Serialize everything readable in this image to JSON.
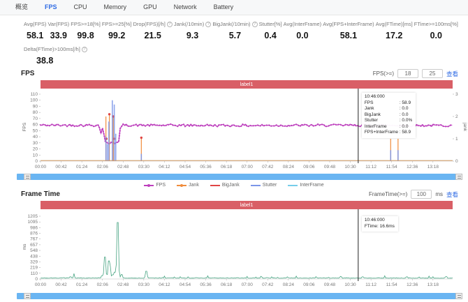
{
  "tabs": {
    "items": [
      {
        "id": "overview",
        "label": "概览",
        "active": false
      },
      {
        "id": "fps",
        "label": "FPS",
        "active": true
      },
      {
        "id": "cpu",
        "label": "CPU",
        "active": false
      },
      {
        "id": "memory",
        "label": "Memory",
        "active": false
      },
      {
        "id": "gpu",
        "label": "GPU",
        "active": false
      },
      {
        "id": "network",
        "label": "Network",
        "active": false
      },
      {
        "id": "battery",
        "label": "Battery",
        "active": false
      }
    ]
  },
  "stats": {
    "items": [
      {
        "label": "Avg(FPS)",
        "value": "58.1",
        "help": false
      },
      {
        "label": "Var(FPS)",
        "value": "33.9",
        "help": false
      },
      {
        "label": "FPS>=18[%]",
        "value": "99.8",
        "help": false
      },
      {
        "label": "FPS>=25[%]",
        "value": "99.2",
        "help": false
      },
      {
        "label": "Drop(FPS)[/h]",
        "value": "21.5",
        "help": true
      },
      {
        "label": "Jank(/10min)",
        "value": "9.3",
        "help": true
      },
      {
        "label": "BigJank(/10min)",
        "value": "5.7",
        "help": true
      },
      {
        "label": "Stutter[%]",
        "value": "0.4",
        "help": false
      },
      {
        "label": "Avg(InterFrame)",
        "value": "0.0",
        "help": false
      },
      {
        "label": "Avg(FPS+InterFrame)",
        "value": "58.1",
        "help": false
      },
      {
        "label": "Avg(FTime)[ms]",
        "value": "17.2",
        "help": false
      },
      {
        "label": "FTime>=100ms[%]",
        "value": "0.0",
        "help": false
      }
    ],
    "delta": {
      "label": "Delta(FTime)>100ms[/h]",
      "value": "38.8",
      "help": true
    }
  },
  "fps_section": {
    "title": "FPS",
    "threshold_label": "FPS(>=)",
    "input1": "18",
    "input2": "25",
    "action": "查看",
    "banner": "label1"
  },
  "ft_section": {
    "title": "Frame Time",
    "threshold_label": "FrameTime(>=)",
    "input": "100",
    "unit": "ms",
    "action": "查看",
    "banner": "label1"
  },
  "legend": {
    "items": [
      {
        "label": "FPS",
        "color": "#bd3fbd",
        "dot": true
      },
      {
        "label": "Jank",
        "color": "#f08c3c",
        "dot": true
      },
      {
        "label": "BigJank",
        "color": "#e04545",
        "dot": false
      },
      {
        "label": "Stutter",
        "color": "#7b96e8",
        "dot": false
      },
      {
        "label": "InterFrame",
        "color": "#76cdea",
        "dot": false
      }
    ]
  },
  "colors": {
    "accent_blue": "#2f6be4",
    "banner_red": "#d95f66",
    "scrollbar_blue": "#6ab5f2",
    "fps_line": "#bd3fbd",
    "jank": "#f08c3c",
    "bigjank": "#e04545",
    "stutter": "#7b96e8",
    "interframe": "#76cdea",
    "ftime_green": "#46a381",
    "cursor": "#222222"
  },
  "chart_data": [
    {
      "type": "line",
      "title": "FPS",
      "ylabel_left": "FPS",
      "ylabel_right": "jank",
      "y_left_ticks": [
        0,
        10,
        20,
        30,
        40,
        50,
        60,
        70,
        80,
        90,
        100,
        110
      ],
      "y_left_range": [
        0,
        110
      ],
      "y_right_ticks": [
        0,
        1,
        2,
        3
      ],
      "y_right_range": [
        0,
        3
      ],
      "x_ticks": [
        "00:00",
        "00:42",
        "01:24",
        "02:06",
        "02:48",
        "03:30",
        "04:12",
        "04:54",
        "05:36",
        "06:18",
        "07:00",
        "07:42",
        "08:24",
        "09:06",
        "09:48",
        "10:30",
        "11:12",
        "11:54",
        "12:36",
        "13:18"
      ],
      "x_tick_interval_s": 42,
      "x_range_s": [
        0,
        838
      ],
      "grid": false,
      "series": [
        {
          "name": "FPS",
          "color": "#bd3fbd",
          "kind": "noisy-line",
          "axis": "left",
          "noise": 2,
          "anchors": [
            [
              0,
              59
            ],
            [
              119,
              59
            ],
            [
              123,
              45
            ],
            [
              127,
              59
            ],
            [
              131,
              31
            ],
            [
              139,
              28
            ],
            [
              145,
              33
            ],
            [
              152,
              29
            ],
            [
              159,
              31
            ],
            [
              163,
              59
            ],
            [
              400,
              58.5
            ],
            [
              646,
              58.9
            ],
            [
              838,
              58.5
            ]
          ]
        },
        {
          "name": "Jank",
          "color": "#f08c3c",
          "kind": "spikes",
          "axis": "right",
          "points": [
            [
              133,
              2.0
            ],
            [
              140,
              2.1
            ],
            [
              148,
              2.0
            ],
            [
              205,
              1.05
            ],
            [
              712,
              1.0
            ],
            [
              727,
              1.0
            ]
          ]
        },
        {
          "name": "BigJank",
          "color": "#e04545",
          "kind": "dots",
          "axis": "right",
          "points": [
            [
              134,
              1.0
            ],
            [
              140,
              2.1
            ],
            [
              148,
              2.0
            ],
            [
              150,
              1.0
            ],
            [
              205,
              1.05
            ]
          ]
        },
        {
          "name": "Stutter",
          "color": "#7b96e8",
          "kind": "bars",
          "axis": "left",
          "points": [
            [
              133,
              40
            ],
            [
              136,
              28
            ],
            [
              139,
              65
            ],
            [
              146,
              100
            ],
            [
              150,
              93
            ],
            [
              153,
              45
            ],
            [
              205,
              12
            ],
            [
              712,
              18
            ],
            [
              727,
              18
            ]
          ]
        },
        {
          "name": "InterFrame",
          "color": "#76cdea",
          "kind": "baseline",
          "axis": "left",
          "value": 0
        },
        {
          "name": "Jank-baseline",
          "color": "#f08c3c",
          "kind": "baseline",
          "axis": "right",
          "value": 0
        }
      ],
      "cursor": {
        "time_s": 646
      },
      "tooltip": {
        "title": "10:46:000",
        "rows": [
          [
            "FPS",
            "58.9"
          ],
          [
            "Jank",
            "0.0"
          ],
          [
            "BigJank",
            "0.0"
          ],
          [
            "Stutter",
            "0.0%"
          ],
          [
            "InterFrame",
            "0.0"
          ],
          [
            "FPS+InterFrame",
            "58.9"
          ]
        ]
      }
    },
    {
      "type": "line",
      "title": "Frame Time",
      "ylabel_left": "ms",
      "y_left_ticks": [
        0,
        110,
        219,
        329,
        438,
        548,
        657,
        767,
        876,
        986,
        1095,
        1205
      ],
      "y_left_range": [
        0,
        1205
      ],
      "x_ticks": [
        "00:00",
        "00:42",
        "01:24",
        "02:06",
        "02:48",
        "03:30",
        "04:12",
        "04:54",
        "05:36",
        "06:18",
        "07:00",
        "07:42",
        "08:24",
        "09:06",
        "09:48",
        "10:30",
        "11:12",
        "11:54",
        "12:36",
        "13:18"
      ],
      "x_tick_interval_s": 42,
      "x_range_s": [
        0,
        838
      ],
      "grid": false,
      "series": [
        {
          "name": "FTime",
          "color": "#46a381",
          "kind": "noisy-line",
          "axis": "left",
          "base": 14,
          "noise": 14,
          "spikes": [
            [
              68,
              105
            ],
            [
              125,
              60
            ],
            [
              131,
              420
            ],
            [
              134,
              95
            ],
            [
              139,
              345
            ],
            [
              142,
              240
            ],
            [
              147,
              80
            ],
            [
              151,
              130
            ],
            [
              157,
              1085
            ],
            [
              160,
              160
            ],
            [
              165,
              85
            ],
            [
              215,
              148
            ],
            [
              252,
              55
            ],
            [
              300,
              42
            ],
            [
              340,
              60
            ],
            [
              420,
              50
            ],
            [
              470,
              42
            ],
            [
              520,
              55
            ],
            [
              560,
              46
            ],
            [
              610,
              50
            ],
            [
              655,
              42
            ],
            [
              700,
              62
            ],
            [
              745,
              42
            ],
            [
              790,
              55
            ],
            [
              825,
              46
            ]
          ]
        }
      ],
      "cursor": {
        "time_s": 646
      },
      "tooltip": {
        "title": "10:46:000",
        "rows": [
          [
            "FTime",
            "16.6ms"
          ]
        ]
      }
    }
  ]
}
